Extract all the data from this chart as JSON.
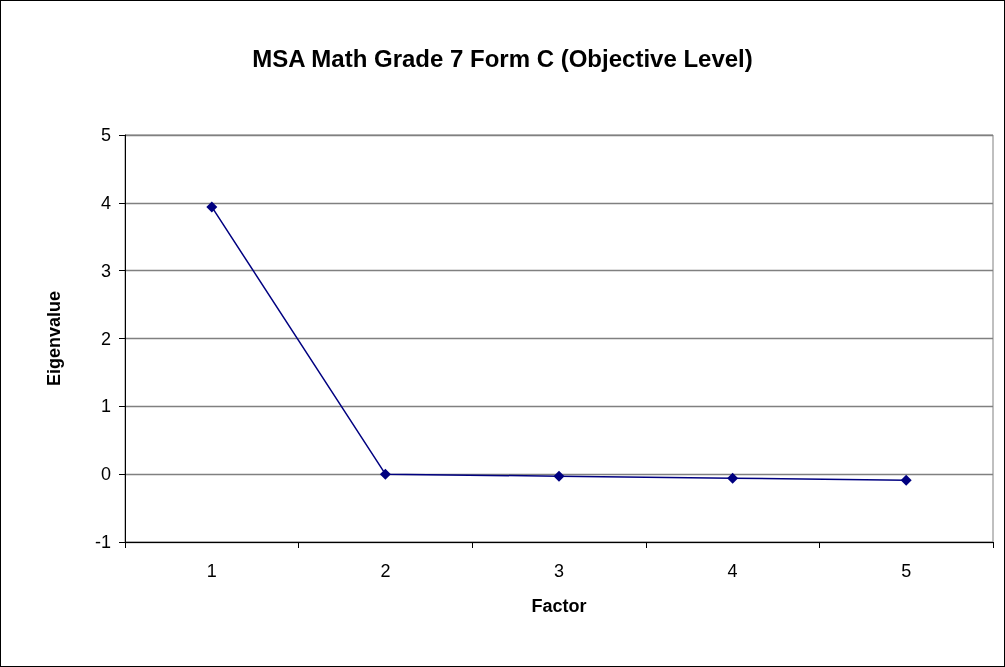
{
  "chart_data": {
    "type": "line",
    "title": "MSA Math Grade 7 Form C (Objective Level)",
    "xlabel": "Factor",
    "ylabel": "Eigenvalue",
    "categories": [
      "1",
      "2",
      "3",
      "4",
      "5"
    ],
    "series": [
      {
        "color": "#000080",
        "values": [
          3.94,
          0.0,
          -0.03,
          -0.06,
          -0.09
        ]
      }
    ],
    "ylim": [
      -1,
      5
    ],
    "yticks": [
      -1,
      0,
      1,
      2,
      3,
      4,
      5
    ],
    "grid": "y",
    "marker": "diamond",
    "line_style": "solid"
  }
}
